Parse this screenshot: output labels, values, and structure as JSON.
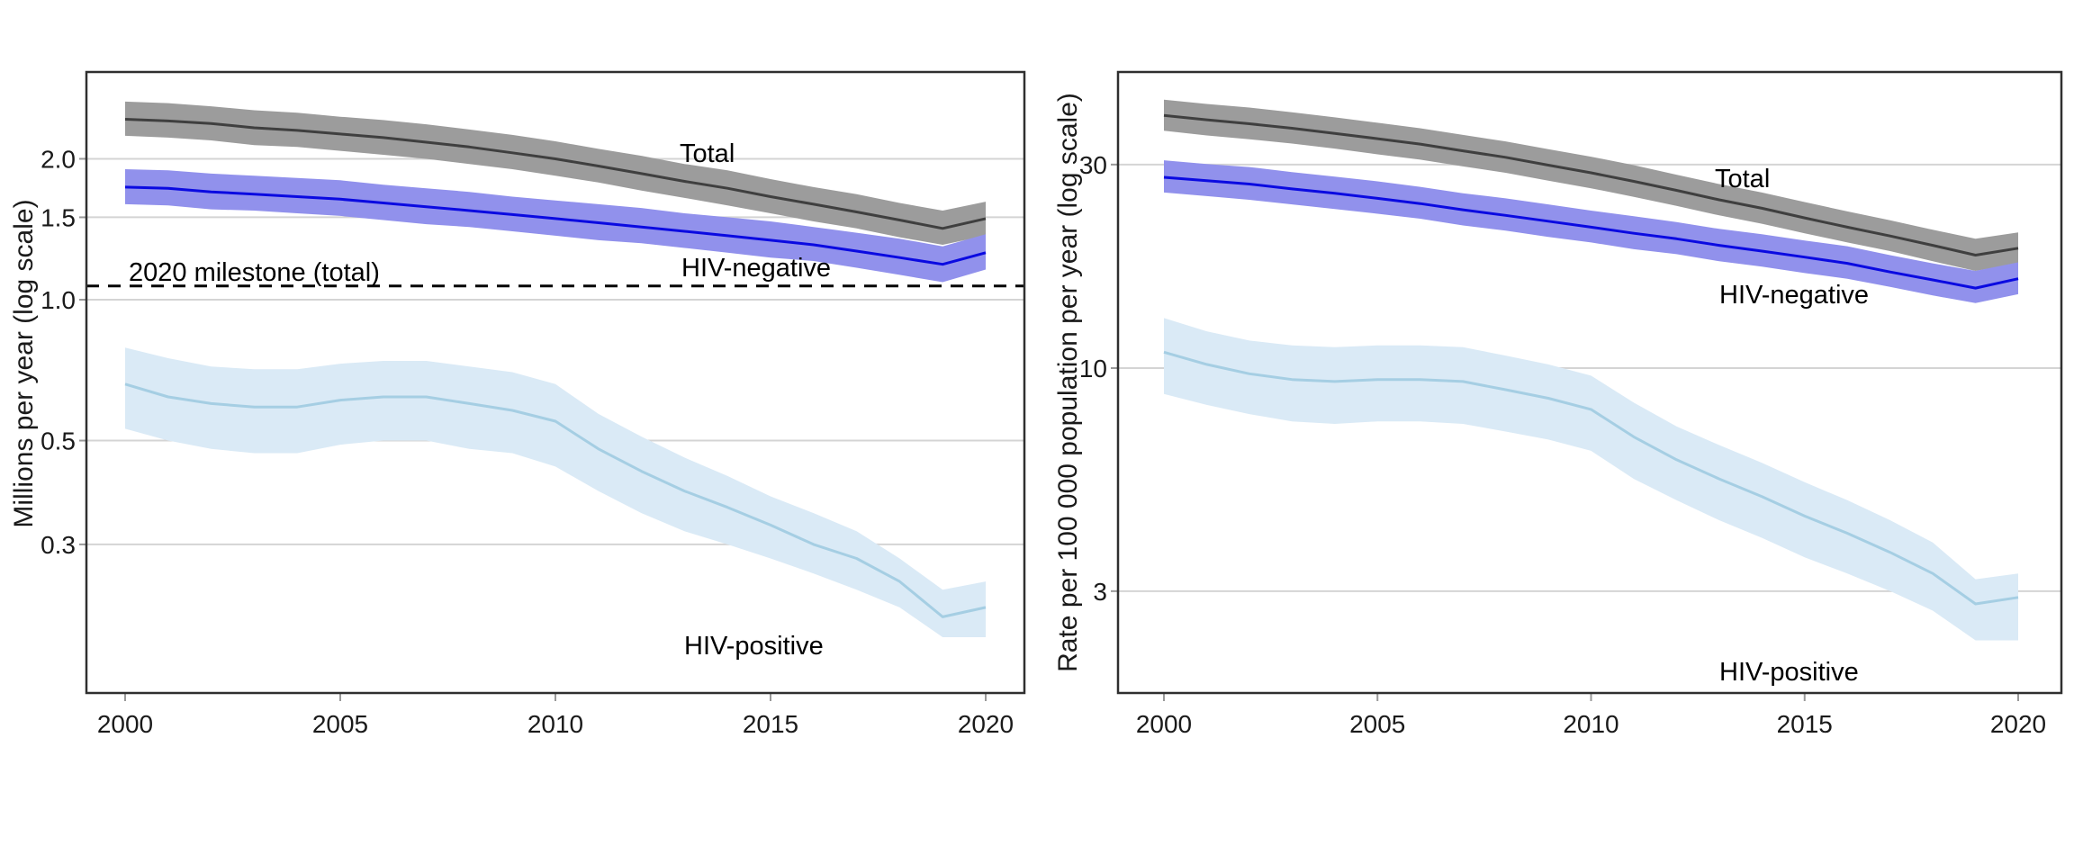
{
  "figure": {
    "description": "Two-panel line chart of TB mortality trends 2000-2020 with shaded uncertainty bands",
    "background": "#ffffff",
    "colors": {
      "grid": "#d4d4d4",
      "panel_border": "#2f2f2f",
      "tick_mark": "#999999",
      "tick_text": "#1a1a1a",
      "milestone_line": "#000000"
    }
  },
  "chart_data": [
    {
      "type": "line",
      "panel": "left",
      "y_scale": "log",
      "ylabel": "Millions per year (log scale)",
      "xlabel": "",
      "x": [
        2000,
        2001,
        2002,
        2003,
        2004,
        2005,
        2006,
        2007,
        2008,
        2009,
        2010,
        2011,
        2012,
        2013,
        2014,
        2015,
        2016,
        2017,
        2018,
        2019,
        2020
      ],
      "x_tick_labels": [
        "2000",
        "2005",
        "2010",
        "2015",
        "2020"
      ],
      "y_tick_values": [
        2.0,
        1.5,
        1.0,
        0.5,
        0.3
      ],
      "y_tick_labels": [
        "2.0",
        "1.5",
        "1.0",
        "0.5",
        "0.3"
      ],
      "ylim": [
        0.15,
        3.05
      ],
      "grid": "horizontal",
      "legend": "direct labels on chart",
      "series": [
        {
          "name": "Total",
          "color": "#3f3f3f",
          "band_color": "#9c9c9c",
          "values": [
            2.43,
            2.41,
            2.38,
            2.33,
            2.3,
            2.26,
            2.22,
            2.17,
            2.12,
            2.06,
            2.0,
            1.93,
            1.86,
            1.79,
            1.73,
            1.66,
            1.6,
            1.54,
            1.48,
            1.42,
            1.49
          ],
          "band_hi": [
            2.65,
            2.63,
            2.59,
            2.54,
            2.51,
            2.46,
            2.42,
            2.37,
            2.31,
            2.25,
            2.18,
            2.1,
            2.03,
            1.95,
            1.89,
            1.81,
            1.74,
            1.68,
            1.61,
            1.55,
            1.62
          ],
          "band_lo": [
            2.24,
            2.22,
            2.19,
            2.14,
            2.12,
            2.08,
            2.04,
            2.0,
            1.95,
            1.9,
            1.84,
            1.78,
            1.71,
            1.65,
            1.59,
            1.53,
            1.47,
            1.42,
            1.36,
            1.31,
            1.37
          ]
        },
        {
          "name": "HIV-negative",
          "color": "#0a0ae1",
          "band_color": "#9191ec",
          "values": [
            1.74,
            1.73,
            1.7,
            1.68,
            1.66,
            1.64,
            1.61,
            1.58,
            1.55,
            1.52,
            1.49,
            1.46,
            1.43,
            1.4,
            1.37,
            1.34,
            1.31,
            1.27,
            1.23,
            1.19,
            1.26
          ],
          "band_hi": [
            1.9,
            1.89,
            1.86,
            1.84,
            1.82,
            1.8,
            1.76,
            1.73,
            1.7,
            1.66,
            1.63,
            1.6,
            1.57,
            1.53,
            1.5,
            1.47,
            1.43,
            1.39,
            1.35,
            1.3,
            1.38
          ],
          "band_lo": [
            1.6,
            1.59,
            1.56,
            1.55,
            1.53,
            1.51,
            1.48,
            1.45,
            1.43,
            1.4,
            1.37,
            1.34,
            1.32,
            1.29,
            1.26,
            1.23,
            1.21,
            1.17,
            1.13,
            1.09,
            1.16
          ]
        },
        {
          "name": "HIV-positive",
          "color": "#a5cee3",
          "band_color": "#daeaf6",
          "values": [
            0.66,
            0.62,
            0.6,
            0.59,
            0.59,
            0.61,
            0.62,
            0.62,
            0.6,
            0.58,
            0.55,
            0.48,
            0.43,
            0.39,
            0.36,
            0.33,
            0.3,
            0.28,
            0.25,
            0.21,
            0.22
          ],
          "band_hi": [
            0.79,
            0.75,
            0.72,
            0.71,
            0.71,
            0.73,
            0.74,
            0.74,
            0.72,
            0.7,
            0.66,
            0.57,
            0.51,
            0.46,
            0.42,
            0.38,
            0.35,
            0.32,
            0.28,
            0.24,
            0.25
          ],
          "band_lo": [
            0.53,
            0.5,
            0.48,
            0.47,
            0.47,
            0.49,
            0.5,
            0.5,
            0.48,
            0.47,
            0.44,
            0.39,
            0.35,
            0.32,
            0.3,
            0.28,
            0.26,
            0.24,
            0.22,
            0.19,
            0.19
          ]
        }
      ],
      "milestone": {
        "label": "2020 milestone (total)",
        "value": 1.07,
        "style": "dashed"
      }
    },
    {
      "type": "line",
      "panel": "right",
      "y_scale": "log",
      "ylabel": "Rate per 100 000 population per year (log scale)",
      "xlabel": "",
      "x": [
        2000,
        2001,
        2002,
        2003,
        2004,
        2005,
        2006,
        2007,
        2008,
        2009,
        2010,
        2011,
        2012,
        2013,
        2014,
        2015,
        2016,
        2017,
        2018,
        2019,
        2020
      ],
      "x_tick_labels": [
        "2000",
        "2005",
        "2010",
        "2015",
        "2020"
      ],
      "y_tick_values": [
        30,
        10,
        3
      ],
      "y_tick_labels": [
        "30",
        "10",
        "3"
      ],
      "ylim": [
        2.0,
        49
      ],
      "grid": "horizontal",
      "legend": "direct labels on chart",
      "series": [
        {
          "name": "Total",
          "color": "#3f3f3f",
          "band_color": "#9c9c9c",
          "values": [
            39.1,
            38.2,
            37.4,
            36.5,
            35.5,
            34.5,
            33.5,
            32.3,
            31.2,
            29.9,
            28.7,
            27.4,
            26.1,
            24.8,
            23.7,
            22.5,
            21.4,
            20.4,
            19.4,
            18.4,
            19.1
          ],
          "band_hi": [
            42.6,
            41.6,
            40.8,
            39.8,
            38.7,
            37.6,
            36.5,
            35.2,
            34.0,
            32.6,
            31.3,
            29.9,
            28.4,
            27.0,
            25.8,
            24.5,
            23.3,
            22.2,
            21.1,
            20.1,
            20.8
          ],
          "band_lo": [
            36.0,
            35.1,
            34.4,
            33.6,
            32.7,
            31.7,
            30.8,
            29.7,
            28.7,
            27.5,
            26.4,
            25.2,
            24.0,
            22.8,
            21.8,
            20.7,
            19.7,
            18.8,
            17.8,
            16.9,
            17.6
          ]
        },
        {
          "name": "HIV-negative",
          "color": "#0a0ae1",
          "band_color": "#9191ec",
          "values": [
            28.0,
            27.5,
            27.0,
            26.3,
            25.7,
            25.0,
            24.3,
            23.5,
            22.8,
            22.1,
            21.4,
            20.7,
            20.1,
            19.4,
            18.8,
            18.2,
            17.6,
            16.8,
            16.1,
            15.4,
            16.2
          ],
          "band_hi": [
            30.7,
            30.1,
            29.6,
            28.8,
            28.1,
            27.4,
            26.6,
            25.7,
            25.0,
            24.2,
            23.4,
            22.7,
            22.0,
            21.2,
            20.6,
            19.9,
            19.3,
            18.4,
            17.6,
            16.9,
            17.7
          ],
          "band_lo": [
            25.8,
            25.3,
            24.8,
            24.2,
            23.6,
            23.0,
            22.4,
            21.6,
            21.0,
            20.3,
            19.7,
            19.0,
            18.5,
            17.8,
            17.3,
            16.7,
            16.2,
            15.5,
            14.8,
            14.2,
            14.9
          ]
        },
        {
          "name": "HIV-positive",
          "color": "#a5cee3",
          "band_color": "#daeaf6",
          "values": [
            10.9,
            10.2,
            9.7,
            9.4,
            9.3,
            9.4,
            9.4,
            9.3,
            8.9,
            8.5,
            8.0,
            6.9,
            6.1,
            5.5,
            5.0,
            4.5,
            4.1,
            3.7,
            3.3,
            2.8,
            2.9
          ],
          "band_hi": [
            13.1,
            12.2,
            11.6,
            11.3,
            11.2,
            11.3,
            11.3,
            11.2,
            10.7,
            10.2,
            9.6,
            8.3,
            7.3,
            6.6,
            6.0,
            5.4,
            4.9,
            4.4,
            3.9,
            3.2,
            3.3
          ],
          "band_lo": [
            8.7,
            8.2,
            7.8,
            7.5,
            7.4,
            7.5,
            7.5,
            7.4,
            7.1,
            6.8,
            6.4,
            5.5,
            4.9,
            4.4,
            4.0,
            3.6,
            3.3,
            3.0,
            2.7,
            2.3,
            2.3
          ]
        }
      ]
    }
  ]
}
